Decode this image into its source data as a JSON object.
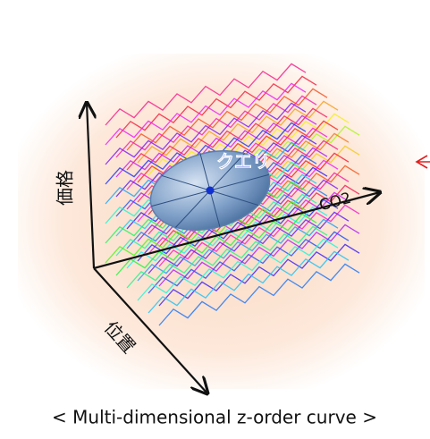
{
  "labels": {
    "query": "クエリ",
    "co2": "CO2",
    "price": "価格",
    "location": "位置"
  },
  "caption": "< Multi-dimensional z-order curve >"
}
